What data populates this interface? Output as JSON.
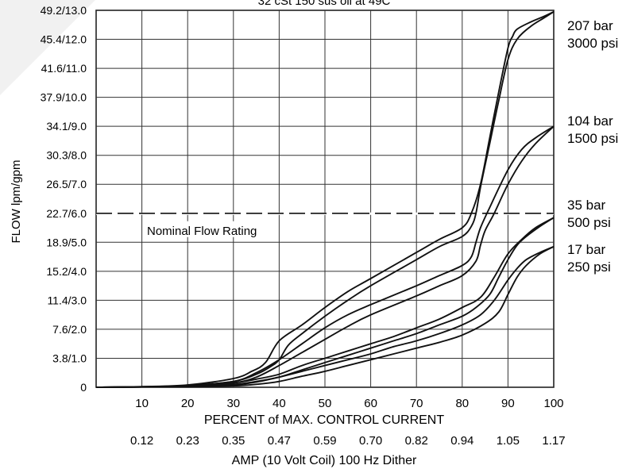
{
  "chart_data": {
    "type": "line",
    "title": "32 cSt 150 sus oil at 49C",
    "xlabel": "PERCENT of MAX. CONTROL CURRENT",
    "xlabel2": "AMP (10 Volt Coil) 100 Hz Dither",
    "ylabel": "FLOW lpm/gpm",
    "xlim": [
      0,
      100
    ],
    "ylim": [
      0,
      13
    ],
    "x_ticks": [
      10,
      20,
      30,
      40,
      50,
      60,
      70,
      80,
      90,
      100
    ],
    "x_tick_labels": [
      "10",
      "20",
      "30",
      "40",
      "50",
      "60",
      "70",
      "80",
      "90",
      "100"
    ],
    "x_tick_zero_label": "0",
    "amp_tick_labels": [
      "0.12",
      "0.23",
      "0.35",
      "0.47",
      "0.59",
      "0.70",
      "0.82",
      "0.94",
      "1.05",
      "1.17"
    ],
    "y_ticks": [
      1,
      2,
      3,
      4,
      5,
      6,
      7,
      8,
      9,
      10,
      11,
      12,
      13
    ],
    "y_tick_labels": [
      "3.8/1.0",
      "7.6/2.0",
      "11.4/3.0",
      "15.2/4.0",
      "18.9/5.0",
      "22.7/6.0",
      "26.5/7.0",
      "30.3/8.0",
      "34.1/9.0",
      "37.9/10.0",
      "41.6/11.0",
      "45.4/12.0",
      "49.2/13.0"
    ],
    "grid": true,
    "reference_line": {
      "y": 6.0,
      "label": "Nominal Flow Rating",
      "style": "dashed"
    },
    "series": [
      {
        "name": "207 bar 3000 psi",
        "label_lines": [
          "207 bar",
          "3000 psi"
        ],
        "upper": {
          "x": [
            0,
            10,
            20,
            30,
            34,
            37,
            40,
            45,
            50,
            55,
            60,
            70,
            75,
            80,
            82,
            84,
            86,
            88,
            90,
            91,
            92,
            95,
            98,
            100
          ],
          "y": [
            0,
            0.02,
            0.08,
            0.3,
            0.55,
            0.85,
            1.6,
            2.15,
            2.75,
            3.3,
            3.75,
            4.65,
            5.1,
            5.5,
            6.0,
            7.0,
            8.6,
            10.2,
            11.7,
            12.1,
            12.35,
            12.6,
            12.8,
            12.95
          ]
        },
        "lower": {
          "x": [
            0,
            10,
            20,
            30,
            35,
            38,
            40,
            42,
            45,
            50,
            55,
            60,
            70,
            75,
            80,
            82,
            83,
            84,
            86,
            88,
            90,
            92,
            95,
            98,
            100
          ],
          "y": [
            0,
            0.02,
            0.06,
            0.2,
            0.45,
            0.7,
            0.95,
            1.45,
            1.85,
            2.45,
            3.0,
            3.5,
            4.4,
            4.85,
            5.2,
            5.55,
            6.0,
            6.9,
            8.4,
            9.9,
            11.3,
            12.0,
            12.45,
            12.75,
            12.95
          ]
        }
      },
      {
        "name": "104 bar 1500 psi",
        "label_lines": [
          "104 bar",
          "1500 psi"
        ],
        "upper": {
          "x": [
            0,
            10,
            20,
            30,
            35,
            40,
            45,
            50,
            55,
            60,
            70,
            75,
            80,
            82,
            83,
            84,
            86,
            90,
            93,
            96,
            100
          ],
          "y": [
            0,
            0.02,
            0.06,
            0.2,
            0.5,
            0.95,
            1.5,
            2.05,
            2.5,
            2.85,
            3.5,
            3.85,
            4.2,
            4.5,
            5.0,
            5.5,
            6.2,
            7.5,
            8.2,
            8.6,
            9.0
          ]
        },
        "lower": {
          "x": [
            0,
            10,
            20,
            30,
            35,
            40,
            45,
            50,
            55,
            60,
            70,
            75,
            80,
            83,
            84,
            85,
            87,
            90,
            93,
            96,
            100
          ],
          "y": [
            0,
            0.01,
            0.05,
            0.15,
            0.35,
            0.75,
            1.2,
            1.65,
            2.1,
            2.5,
            3.15,
            3.5,
            3.85,
            4.35,
            4.9,
            5.4,
            6.0,
            7.0,
            7.8,
            8.4,
            9.0
          ]
        }
      },
      {
        "name": "35 bar 500 psi",
        "label_lines": [
          "35 bar",
          "500 psi"
        ],
        "upper": {
          "x": [
            0,
            10,
            20,
            30,
            35,
            40,
            45,
            50,
            55,
            60,
            65,
            70,
            75,
            80,
            84,
            87,
            90,
            93,
            96,
            100
          ],
          "y": [
            0,
            0.01,
            0.04,
            0.15,
            0.28,
            0.45,
            0.75,
            1.0,
            1.25,
            1.5,
            1.75,
            2.05,
            2.35,
            2.75,
            3.1,
            3.8,
            4.6,
            5.1,
            5.5,
            5.85
          ]
        },
        "lower": {
          "x": [
            0,
            10,
            20,
            30,
            35,
            40,
            45,
            50,
            55,
            60,
            65,
            70,
            75,
            80,
            83,
            86,
            88,
            90,
            92,
            94,
            97,
            100
          ],
          "y": [
            0,
            0.01,
            0.03,
            0.1,
            0.2,
            0.35,
            0.6,
            0.85,
            1.1,
            1.35,
            1.6,
            1.85,
            2.15,
            2.45,
            2.75,
            3.2,
            3.8,
            4.4,
            4.9,
            5.2,
            5.55,
            5.85
          ]
        }
      },
      {
        "name": "17 bar 250 psi",
        "label_lines": [
          "17 bar",
          "250 psi"
        ],
        "upper": {
          "x": [
            0,
            10,
            20,
            30,
            35,
            40,
            45,
            50,
            55,
            60,
            65,
            70,
            75,
            80,
            84,
            87,
            90,
            92,
            94,
            97,
            100
          ],
          "y": [
            0,
            0.01,
            0.02,
            0.08,
            0.18,
            0.35,
            0.55,
            0.75,
            0.95,
            1.15,
            1.4,
            1.6,
            1.85,
            2.15,
            2.5,
            3.0,
            3.7,
            4.1,
            4.4,
            4.65,
            4.85
          ]
        },
        "lower": {
          "x": [
            0,
            10,
            20,
            30,
            35,
            40,
            45,
            50,
            55,
            60,
            65,
            70,
            75,
            80,
            85,
            88,
            90,
            92,
            94,
            97,
            100
          ],
          "y": [
            0,
            0.01,
            0.02,
            0.05,
            0.1,
            0.2,
            0.38,
            0.55,
            0.75,
            0.95,
            1.15,
            1.35,
            1.55,
            1.8,
            2.2,
            2.6,
            3.2,
            3.8,
            4.2,
            4.6,
            4.85
          ]
        }
      }
    ]
  }
}
